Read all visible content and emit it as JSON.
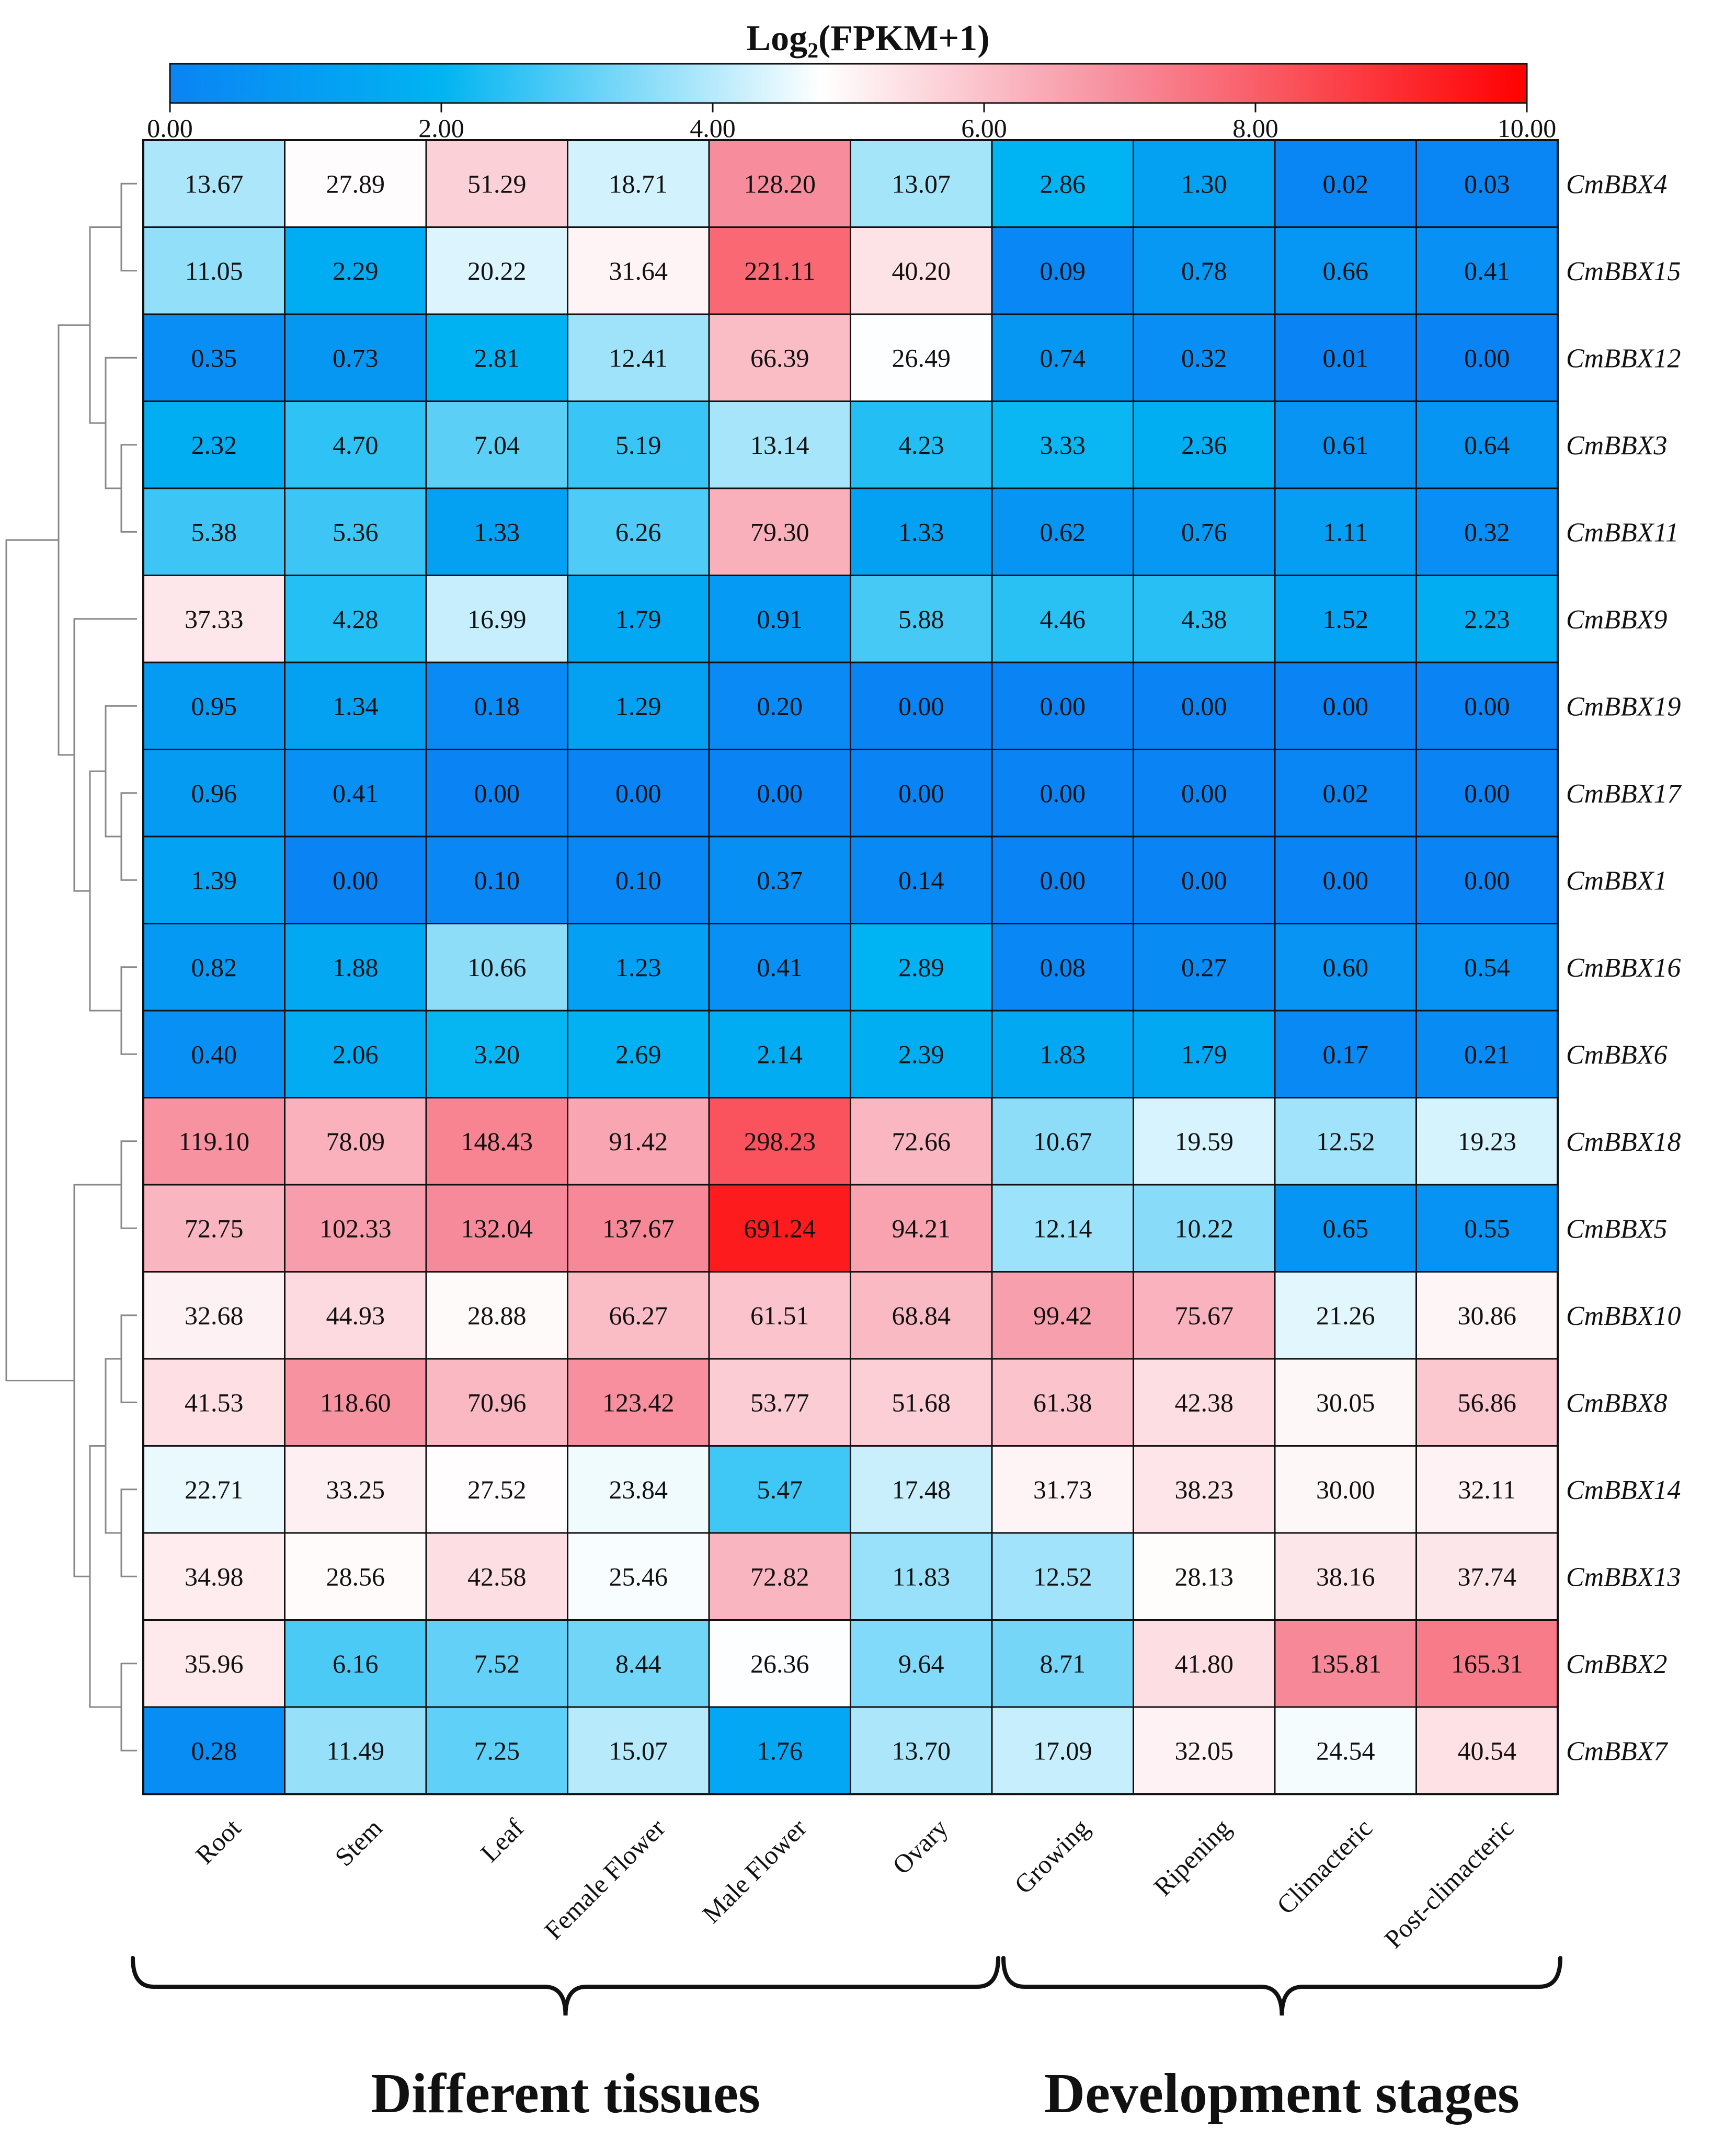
{
  "chart_data": {
    "type": "heatmap",
    "title": "Log₂(FPKM+1)",
    "legend": {
      "ticks": [
        "0.00",
        "2.00",
        "4.00",
        "6.00",
        "8.00",
        "10.00"
      ],
      "range": [
        0,
        10
      ],
      "colors": {
        "low": "#0a84f4",
        "mid_low": "#00b4f2",
        "mid": "#ffffff",
        "mid_high": "#f78d9d",
        "high": "#ff0000"
      }
    },
    "columns": [
      "Root",
      "Stem",
      "Leaf",
      "Female Flower",
      "Male Flower",
      "Ovary",
      "Growing",
      "Ripening",
      "Climacteric",
      "Post-climacteric"
    ],
    "rows": [
      {
        "gene": "CmBBX4",
        "values": [
          "13.67",
          "27.89",
          "51.29",
          "18.71",
          "128.20",
          "13.07",
          "2.86",
          "1.30",
          "0.02",
          "0.03"
        ]
      },
      {
        "gene": "CmBBX15",
        "values": [
          "11.05",
          "2.29",
          "20.22",
          "31.64",
          "221.11",
          "40.20",
          "0.09",
          "0.78",
          "0.66",
          "0.41"
        ]
      },
      {
        "gene": "CmBBX12",
        "values": [
          "0.35",
          "0.73",
          "2.81",
          "12.41",
          "66.39",
          "26.49",
          "0.74",
          "0.32",
          "0.01",
          "0.00"
        ]
      },
      {
        "gene": "CmBBX3",
        "values": [
          "2.32",
          "4.70",
          "7.04",
          "5.19",
          "13.14",
          "4.23",
          "3.33",
          "2.36",
          "0.61",
          "0.64"
        ]
      },
      {
        "gene": "CmBBX11",
        "values": [
          "5.38",
          "5.36",
          "1.33",
          "6.26",
          "79.30",
          "1.33",
          "0.62",
          "0.76",
          "1.11",
          "0.32"
        ]
      },
      {
        "gene": "CmBBX9",
        "values": [
          "37.33",
          "4.28",
          "16.99",
          "1.79",
          "0.91",
          "5.88",
          "4.46",
          "4.38",
          "1.52",
          "2.23"
        ]
      },
      {
        "gene": "CmBBX19",
        "values": [
          "0.95",
          "1.34",
          "0.18",
          "1.29",
          "0.20",
          "0.00",
          "0.00",
          "0.00",
          "0.00",
          "0.00"
        ]
      },
      {
        "gene": "CmBBX17",
        "values": [
          "0.96",
          "0.41",
          "0.00",
          "0.00",
          "0.00",
          "0.00",
          "0.00",
          "0.00",
          "0.02",
          "0.00"
        ]
      },
      {
        "gene": "CmBBX1",
        "values": [
          "1.39",
          "0.00",
          "0.10",
          "0.10",
          "0.37",
          "0.14",
          "0.00",
          "0.00",
          "0.00",
          "0.00"
        ]
      },
      {
        "gene": "CmBBX16",
        "values": [
          "0.82",
          "1.88",
          "10.66",
          "1.23",
          "0.41",
          "2.89",
          "0.08",
          "0.27",
          "0.60",
          "0.54"
        ]
      },
      {
        "gene": "CmBBX6",
        "values": [
          "0.40",
          "2.06",
          "3.20",
          "2.69",
          "2.14",
          "2.39",
          "1.83",
          "1.79",
          "0.17",
          "0.21"
        ]
      },
      {
        "gene": "CmBBX18",
        "values": [
          "119.10",
          "78.09",
          "148.43",
          "91.42",
          "298.23",
          "72.66",
          "10.67",
          "19.59",
          "12.52",
          "19.23"
        ]
      },
      {
        "gene": "CmBBX5",
        "values": [
          "72.75",
          "102.33",
          "132.04",
          "137.67",
          "691.24",
          "94.21",
          "12.14",
          "10.22",
          "0.65",
          "0.55"
        ]
      },
      {
        "gene": "CmBBX10",
        "values": [
          "32.68",
          "44.93",
          "28.88",
          "66.27",
          "61.51",
          "68.84",
          "99.42",
          "75.67",
          "21.26",
          "30.86"
        ]
      },
      {
        "gene": "CmBBX8",
        "values": [
          "41.53",
          "118.60",
          "70.96",
          "123.42",
          "53.77",
          "51.68",
          "61.38",
          "42.38",
          "30.05",
          "56.86"
        ]
      },
      {
        "gene": "CmBBX14",
        "values": [
          "22.71",
          "33.25",
          "27.52",
          "23.84",
          "5.47",
          "17.48",
          "31.73",
          "38.23",
          "30.00",
          "32.11"
        ]
      },
      {
        "gene": "CmBBX13",
        "values": [
          "34.98",
          "28.56",
          "42.58",
          "25.46",
          "72.82",
          "11.83",
          "12.52",
          "28.13",
          "38.16",
          "37.74"
        ]
      },
      {
        "gene": "CmBBX2",
        "values": [
          "35.96",
          "6.16",
          "7.52",
          "8.44",
          "26.36",
          "9.64",
          "8.71",
          "41.80",
          "135.81",
          "165.31"
        ]
      },
      {
        "gene": "CmBBX7",
        "values": [
          "0.28",
          "11.49",
          "7.25",
          "15.07",
          "1.76",
          "13.70",
          "17.09",
          "32.05",
          "24.54",
          "40.54"
        ]
      }
    ],
    "groups": [
      {
        "label": "Different tissues",
        "columns": [
          "Root",
          "Stem",
          "Leaf",
          "Female Flower",
          "Male Flower",
          "Ovary"
        ]
      },
      {
        "label": "Development stages",
        "columns": [
          "Growing",
          "Ripening",
          "Climacteric",
          "Post-climacteric"
        ]
      }
    ],
    "dendrogram": {
      "type": "row-clustering",
      "merges": [
        [
          0,
          1
        ],
        [
          3,
          4
        ],
        [
          2,
          "m1"
        ],
        [
          "m0",
          "m2"
        ],
        [
          7,
          8
        ],
        [
          6,
          "m4"
        ],
        [
          9,
          10
        ],
        [
          "m5",
          "m6"
        ],
        [
          5,
          "m7"
        ],
        [
          "m3",
          "m8"
        ],
        [
          11,
          12
        ],
        [
          13,
          14
        ],
        [
          15,
          16
        ],
        [
          "m11",
          "m12"
        ],
        [
          17,
          18
        ],
        [
          "m13",
          "m14"
        ],
        [
          "m10",
          "m15"
        ],
        [
          "m9",
          "m16"
        ]
      ]
    }
  }
}
